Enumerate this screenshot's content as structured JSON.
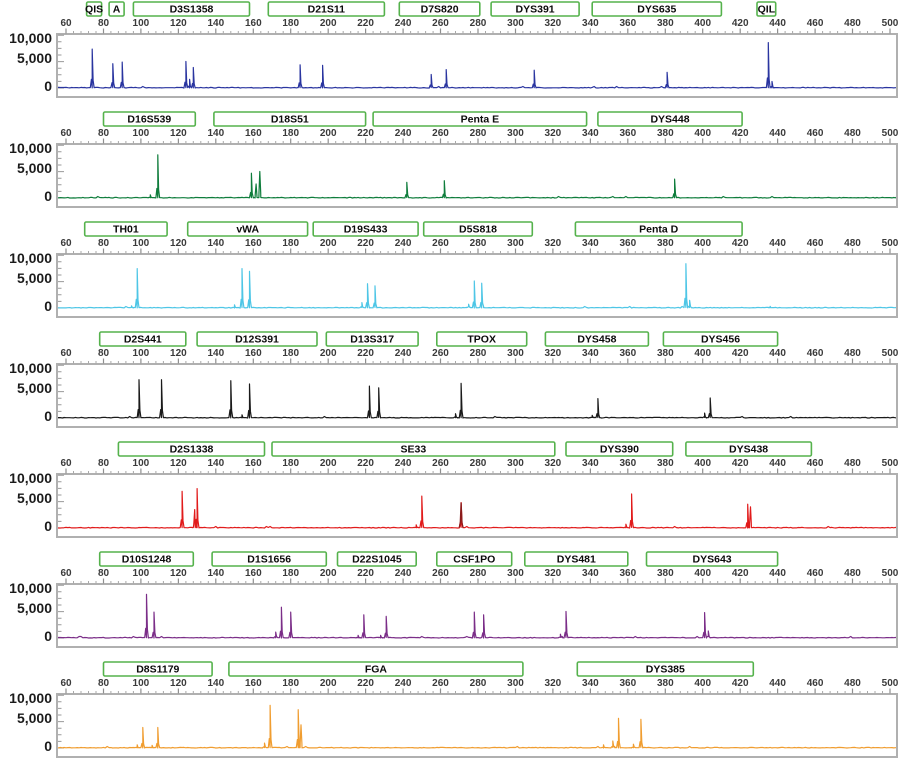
{
  "chart_data": {
    "type": "line",
    "subtype": "STR capillary electrophoresis electropherogram, 7 dye channels",
    "title": "",
    "xlabel": "",
    "ylabel": "",
    "axis": {
      "x_min": 60,
      "x_max": 500,
      "x_ticks": [
        60,
        80,
        100,
        120,
        140,
        160,
        180,
        200,
        220,
        240,
        260,
        280,
        300,
        320,
        340,
        360,
        380,
        400,
        420,
        440,
        460,
        480,
        500
      ],
      "x_minor_tick_step": 4,
      "y_min": 0,
      "y_max": 10000,
      "y_tick_labels": [
        "10,000",
        "5,000",
        "0"
      ],
      "y_tick_values": [
        10000,
        5000,
        0
      ],
      "grid": false,
      "marker_box_border_color": "#55b24c",
      "plot_border_color": "#b0b0b0"
    },
    "panels": [
      {
        "color_name": "blue",
        "color": "#2a35a0",
        "markers": [
          {
            "label": "QIS",
            "start": 71,
            "end": 79
          },
          {
            "label": "A",
            "start": 83,
            "end": 91
          },
          {
            "label": "D3S1358",
            "start": 96,
            "end": 158
          },
          {
            "label": "D21S11",
            "start": 168,
            "end": 230
          },
          {
            "label": "D7S820",
            "start": 238,
            "end": 281
          },
          {
            "label": "DYS391",
            "start": 287,
            "end": 334
          },
          {
            "label": "DYS635",
            "start": 341,
            "end": 410
          },
          {
            "label": "QIL",
            "start": 429,
            "end": 439
          }
        ],
        "peaks": [
          [
            74,
            7200
          ],
          [
            85,
            4500
          ],
          [
            90,
            4800
          ],
          [
            124,
            4900
          ],
          [
            126,
            1600
          ],
          [
            128,
            3800
          ],
          [
            185,
            4300
          ],
          [
            197,
            4200
          ],
          [
            255,
            2500
          ],
          [
            263,
            3400
          ],
          [
            310,
            3300
          ],
          [
            381,
            2900
          ],
          [
            435,
            8400
          ],
          [
            437,
            1200
          ]
        ]
      },
      {
        "color_name": "green",
        "color": "#0f7d3c",
        "markers": [
          {
            "label": "D16S539",
            "start": 80,
            "end": 129
          },
          {
            "label": "D18S51",
            "start": 139,
            "end": 220
          },
          {
            "label": "Penta E",
            "start": 224,
            "end": 338
          },
          {
            "label": "DYS448",
            "start": 344,
            "end": 421
          }
        ],
        "peaks": [
          [
            105,
            600
          ],
          [
            109,
            8000
          ],
          [
            159,
            4600
          ],
          [
            161.5,
            2600
          ],
          [
            163.5,
            4900
          ],
          [
            242,
            2900
          ],
          [
            262,
            3200
          ],
          [
            385,
            3500
          ]
        ]
      },
      {
        "color_name": "cyan",
        "color": "#4ec6e6",
        "markers": [
          {
            "label": "TH01",
            "start": 70,
            "end": 114
          },
          {
            "label": "vWA",
            "start": 125,
            "end": 189
          },
          {
            "label": "D19S433",
            "start": 192,
            "end": 248
          },
          {
            "label": "D5S818",
            "start": 251,
            "end": 309
          },
          {
            "label": "Penta D",
            "start": 332,
            "end": 421
          }
        ],
        "peaks": [
          [
            95,
            400
          ],
          [
            98,
            7300
          ],
          [
            150,
            600
          ],
          [
            154,
            7300
          ],
          [
            158,
            6800
          ],
          [
            218,
            1000
          ],
          [
            221,
            4500
          ],
          [
            225,
            4100
          ],
          [
            275,
            700
          ],
          [
            278,
            5000
          ],
          [
            282,
            4600
          ],
          [
            391,
            8200
          ],
          [
            393,
            1400
          ],
          [
            436,
            300
          ]
        ]
      },
      {
        "color_name": "black",
        "color": "#1a1a1a",
        "markers": [
          {
            "label": "D2S441",
            "start": 78,
            "end": 124
          },
          {
            "label": "D12S391",
            "start": 130,
            "end": 194
          },
          {
            "label": "D13S317",
            "start": 199,
            "end": 248
          },
          {
            "label": "TPOX",
            "start": 258,
            "end": 306
          },
          {
            "label": "DYS458",
            "start": 316,
            "end": 371
          },
          {
            "label": "DYS456",
            "start": 379,
            "end": 440
          }
        ],
        "peaks": [
          [
            99,
            7100
          ],
          [
            111,
            7100
          ],
          [
            148,
            6900
          ],
          [
            154,
            600
          ],
          [
            158,
            6300
          ],
          [
            222,
            5900
          ],
          [
            227,
            5600
          ],
          [
            268,
            800
          ],
          [
            271,
            6400
          ],
          [
            341,
            500
          ],
          [
            344,
            3600
          ],
          [
            401,
            900
          ],
          [
            404,
            3700
          ]
        ]
      },
      {
        "color_name": "red",
        "color": "#e11b1b",
        "markers": [
          {
            "label": "D2S1338",
            "start": 88,
            "end": 166
          },
          {
            "label": "SE33",
            "start": 170,
            "end": 321
          },
          {
            "label": "DYS390",
            "start": 327,
            "end": 384
          },
          {
            "label": "DYS438",
            "start": 391,
            "end": 458
          }
        ],
        "peaks": [
          [
            122,
            6800
          ],
          [
            128.7,
            3400
          ],
          [
            130,
            7300
          ],
          [
            247,
            600
          ],
          [
            250,
            5900
          ],
          [
            271,
            4700,
            "#8a1a1a"
          ],
          [
            359,
            700
          ],
          [
            362,
            6300
          ],
          [
            424,
            4400
          ],
          [
            425.5,
            3900
          ]
        ]
      },
      {
        "color_name": "purple",
        "color": "#7b2e88",
        "markers": [
          {
            "label": "D10S1248",
            "start": 78,
            "end": 128
          },
          {
            "label": "D1S1656",
            "start": 138,
            "end": 199
          },
          {
            "label": "D22S1045",
            "start": 205,
            "end": 247
          },
          {
            "label": "CSF1PO",
            "start": 258,
            "end": 298
          },
          {
            "label": "DYS481",
            "start": 305,
            "end": 360
          },
          {
            "label": "DYS643",
            "start": 370,
            "end": 440
          }
        ],
        "peaks": [
          [
            103,
            8100
          ],
          [
            107,
            4800
          ],
          [
            172,
            1100
          ],
          [
            175,
            5700
          ],
          [
            180,
            4800
          ],
          [
            216,
            500
          ],
          [
            219,
            4300
          ],
          [
            228,
            500
          ],
          [
            231,
            4000
          ],
          [
            278,
            4800
          ],
          [
            283,
            4300
          ],
          [
            324,
            700
          ],
          [
            327,
            4900
          ],
          [
            401,
            4700
          ],
          [
            403,
            1300
          ]
        ]
      },
      {
        "color_name": "orange",
        "color": "#f09d30",
        "markers": [
          {
            "label": "D8S1179",
            "start": 80,
            "end": 138
          },
          {
            "label": "FGA",
            "start": 147,
            "end": 304
          },
          {
            "label": "DYS385",
            "start": 333,
            "end": 427
          }
        ],
        "peaks": [
          [
            98,
            600
          ],
          [
            101,
            3800
          ],
          [
            106,
            500
          ],
          [
            109,
            3800
          ],
          [
            166,
            900
          ],
          [
            169,
            7900
          ],
          [
            184,
            7100
          ],
          [
            185.5,
            4300
          ],
          [
            347,
            600
          ],
          [
            352,
            1300
          ],
          [
            355,
            5500
          ],
          [
            363,
            700
          ],
          [
            367,
            5300
          ]
        ]
      }
    ]
  }
}
